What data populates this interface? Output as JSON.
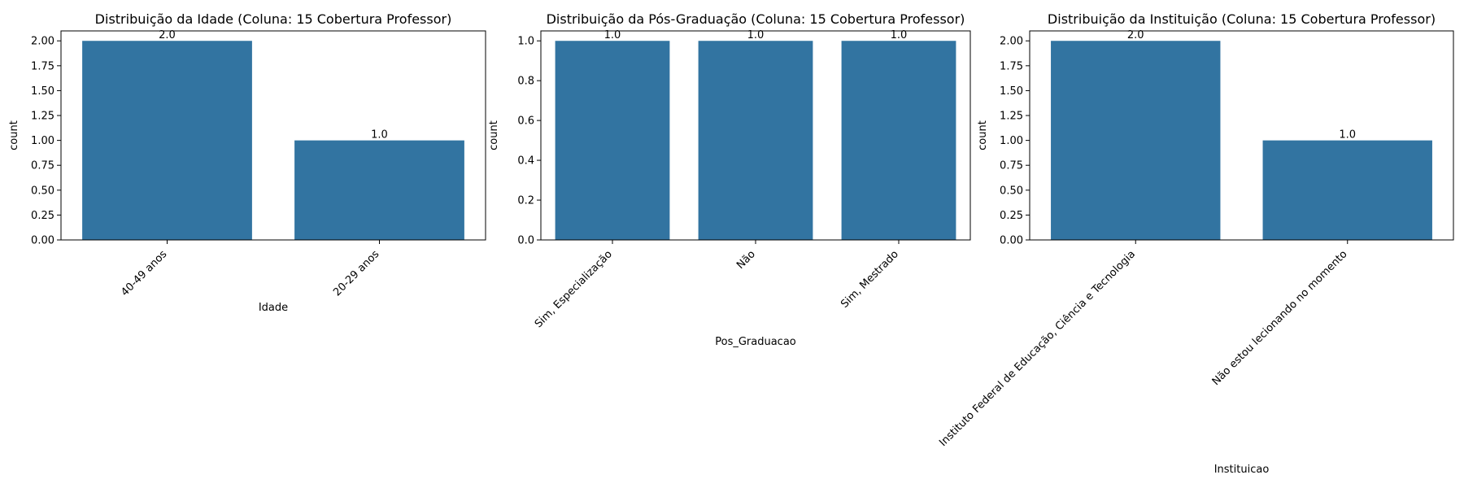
{
  "style": {
    "bar_color": "#3274a1",
    "axis_color": "#000000",
    "background": "#ffffff"
  },
  "chart_data": [
    {
      "type": "bar",
      "title": "Distribuição da Idade (Coluna: 15 Cobertura Professor)",
      "xlabel": "Idade",
      "ylabel": "count",
      "categories": [
        "40-49 anos",
        "20-29 anos"
      ],
      "values": [
        2.0,
        1.0
      ],
      "value_labels": [
        "2.0",
        "1.0"
      ],
      "ylim": [
        0,
        2.1
      ],
      "yticks": [
        0.0,
        0.25,
        0.5,
        0.75,
        1.0,
        1.25,
        1.5,
        1.75,
        2.0
      ],
      "ytick_labels": [
        "0.00",
        "0.25",
        "0.50",
        "0.75",
        "1.00",
        "1.25",
        "1.50",
        "1.75",
        "2.00"
      ],
      "grid": false
    },
    {
      "type": "bar",
      "title": "Distribuição da Pós-Graduação (Coluna: 15 Cobertura Professor)",
      "xlabel": "Pos_Graduacao",
      "ylabel": "count",
      "categories": [
        "Sim, Especialização",
        "Não",
        "Sim, Mestrado"
      ],
      "values": [
        1.0,
        1.0,
        1.0
      ],
      "value_labels": [
        "1.0",
        "1.0",
        "1.0"
      ],
      "ylim": [
        0,
        1.05
      ],
      "yticks": [
        0.0,
        0.2,
        0.4,
        0.6,
        0.8,
        1.0
      ],
      "ytick_labels": [
        "0.0",
        "0.2",
        "0.4",
        "0.6",
        "0.8",
        "1.0"
      ],
      "grid": false
    },
    {
      "type": "bar",
      "title": "Distribuição da Instituição (Coluna: 15 Cobertura Professor)",
      "xlabel": "Instituicao",
      "ylabel": "count",
      "categories": [
        "Instituto Federal de Educação, Ciência e Tecnologia",
        "Não estou lecionando no momento"
      ],
      "values": [
        2.0,
        1.0
      ],
      "value_labels": [
        "2.0",
        "1.0"
      ],
      "ylim": [
        0,
        2.1
      ],
      "yticks": [
        0.0,
        0.25,
        0.5,
        0.75,
        1.0,
        1.25,
        1.5,
        1.75,
        2.0
      ],
      "ytick_labels": [
        "0.00",
        "0.25",
        "0.50",
        "0.75",
        "1.00",
        "1.25",
        "1.50",
        "1.75",
        "2.00"
      ],
      "grid": false
    }
  ]
}
